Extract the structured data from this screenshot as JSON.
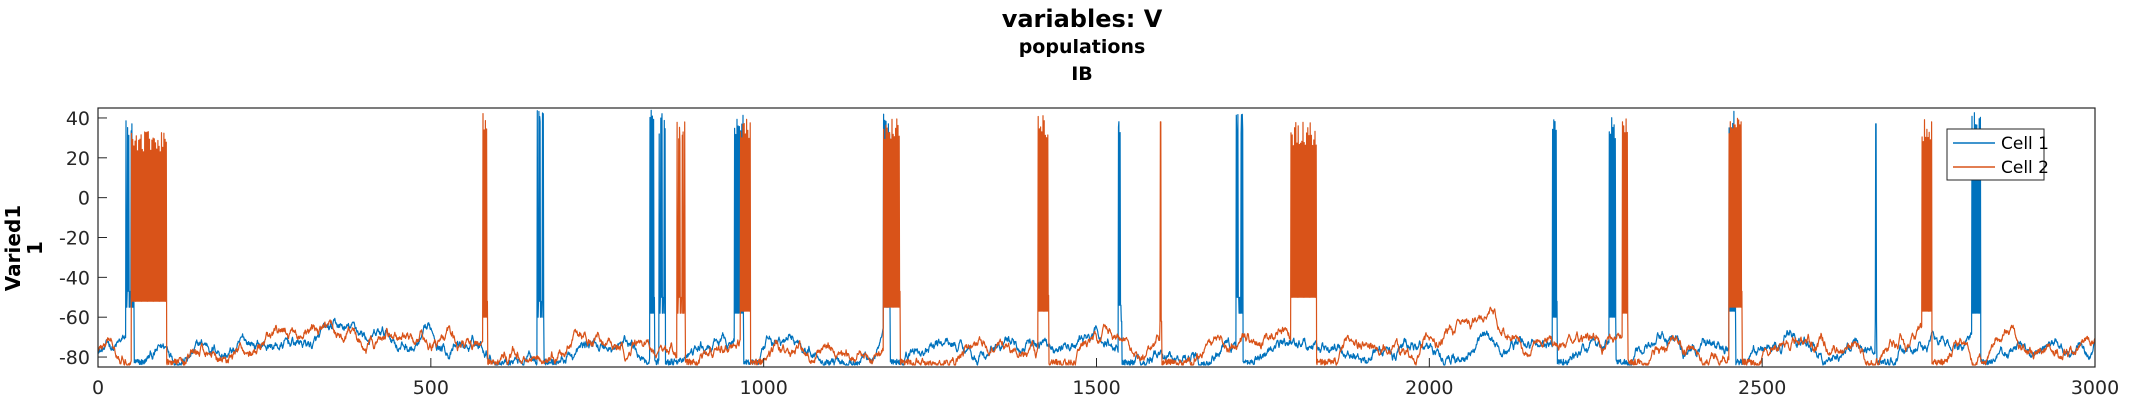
{
  "chart_data": {
    "type": "line",
    "title": "variables: V",
    "subtitle": "populations",
    "subtitle2": "IB",
    "ylabel_line1": "Varied1",
    "ylabel_line2": "1",
    "xlim": [
      0,
      3000
    ],
    "ylim": [
      -85,
      45
    ],
    "xticks": [
      0,
      500,
      1000,
      1500,
      2000,
      2500,
      3000
    ],
    "yticks": [
      -80,
      -60,
      -40,
      -20,
      0,
      20,
      40
    ],
    "legend_position": "top-right",
    "colors": {
      "cell1": "#0072BD",
      "cell2": "#D95319"
    },
    "series": [
      {
        "name": "Cell 1",
        "color": "#0072BD",
        "baseline": -75,
        "bursts": [
          {
            "start": 42,
            "end": 54,
            "peak": 40,
            "plateau": -55
          },
          {
            "start": 660,
            "end": 670,
            "peak": 44,
            "plateau": -60
          },
          {
            "start": 829,
            "end": 836,
            "peak": 44,
            "plateau": -58
          },
          {
            "start": 843,
            "end": 852,
            "peak": 43,
            "plateau": -58
          },
          {
            "start": 956,
            "end": 970,
            "peak": 42,
            "plateau": -58
          },
          {
            "start": 1180,
            "end": 1190,
            "peak": 42,
            "plateau": -55
          },
          {
            "start": 1533,
            "end": 1538,
            "peak": 44,
            "plateau": -62
          },
          {
            "start": 1710,
            "end": 1720,
            "peak": 44,
            "plateau": -58
          },
          {
            "start": 2185,
            "end": 2192,
            "peak": 42,
            "plateau": -60
          },
          {
            "start": 2270,
            "end": 2280,
            "peak": 41,
            "plateau": -60
          },
          {
            "start": 2450,
            "end": 2460,
            "peak": 44,
            "plateau": -57
          },
          {
            "start": 2670,
            "end": 2672,
            "peak": 37,
            "plateau": -65
          },
          {
            "start": 2815,
            "end": 2828,
            "peak": 44,
            "plateau": -58
          }
        ]
      },
      {
        "name": "Cell 2",
        "color": "#D95319",
        "baseline": -75,
        "bursts": [
          {
            "start": 50,
            "end": 103,
            "peak": 34,
            "plateau": -52
          },
          {
            "start": 578,
            "end": 585,
            "peak": 43,
            "plateau": -60
          },
          {
            "start": 870,
            "end": 882,
            "peak": 40,
            "plateau": -58
          },
          {
            "start": 965,
            "end": 980,
            "peak": 40,
            "plateau": -57
          },
          {
            "start": 1180,
            "end": 1205,
            "peak": 40,
            "plateau": -55
          },
          {
            "start": 1412,
            "end": 1428,
            "peak": 42,
            "plateau": -57
          },
          {
            "start": 1595,
            "end": 1598,
            "peak": 38,
            "plateau": -62
          },
          {
            "start": 1792,
            "end": 1830,
            "peak": 38,
            "plateau": -50
          },
          {
            "start": 2290,
            "end": 2298,
            "peak": 40,
            "plateau": -58
          },
          {
            "start": 2450,
            "end": 2470,
            "peak": 40,
            "plateau": -55
          },
          {
            "start": 2740,
            "end": 2755,
            "peak": 40,
            "plateau": -57
          }
        ]
      }
    ]
  }
}
